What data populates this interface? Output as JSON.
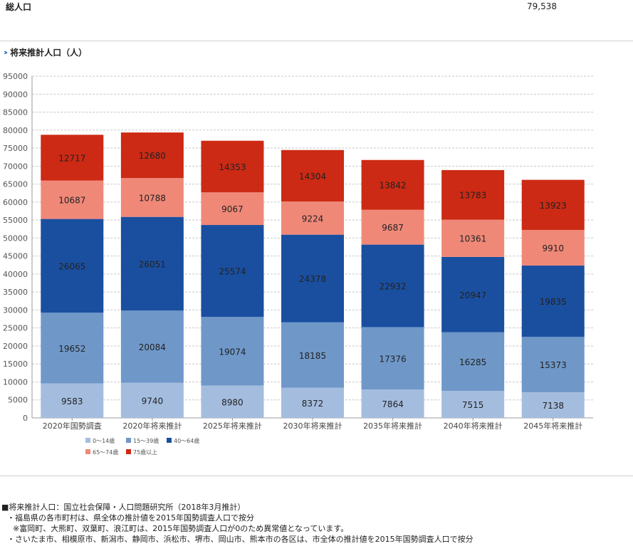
{
  "summary": {
    "label": "総人口",
    "value": "79,538"
  },
  "section_title": "将来推計人口（人）",
  "chart_data": {
    "type": "bar",
    "stacked": true,
    "title": "将来推計人口（人）",
    "categories": [
      "2020年国勢調査",
      "2020年将来推計",
      "2025年将来推計",
      "2030年将来推計",
      "2035年将来推計",
      "2040年将来推計",
      "2045年将来推計"
    ],
    "series": [
      {
        "name": "0～14歳",
        "color": "#a4bddf",
        "values": [
          9583,
          9740,
          8980,
          8372,
          7864,
          7515,
          7138
        ]
      },
      {
        "name": "15～39歳",
        "color": "#6f98c9",
        "values": [
          19652,
          20084,
          19074,
          18185,
          17376,
          16285,
          15373
        ]
      },
      {
        "name": "40～64歳",
        "color": "#1a4fa0",
        "values": [
          26065,
          26051,
          25574,
          24378,
          22932,
          20947,
          19835
        ]
      },
      {
        "name": "65～74歳",
        "color": "#f08878",
        "values": [
          10687,
          10788,
          9067,
          9224,
          9687,
          10361,
          9910
        ]
      },
      {
        "name": "75歳以上",
        "color": "#cc2a14",
        "values": [
          12717,
          12680,
          14353,
          14304,
          13842,
          13783,
          13923
        ]
      }
    ],
    "y_ticks": [
      "0",
      "5000",
      "10000",
      "15000",
      "20000",
      "25000",
      "30000",
      "35000",
      "40000",
      "45000",
      "50000",
      "55000",
      "60000",
      "65000",
      "70000",
      "75000",
      "80000",
      "85000",
      "90000",
      "95000"
    ],
    "ylim": [
      0,
      95000
    ],
    "xlabel": "",
    "ylabel": "",
    "grid": true,
    "legend_position": "bottom-left"
  },
  "notes": [
    "■将来推計人口：国立社会保障・人口問題研究所（2018年3月推計）",
    "・福島県の各市町村は、県全体の推計値を2015年国勢調査人口で按分",
    "※富岡町、大熊町、双葉町、浪江町は、2015年国勢調査人口が0のため異常値となっています。",
    "・さいたま市、相模原市、新潟市、静岡市、浜松市、堺市、岡山市、熊本市の各区は、市全体の推計値を2015年国勢調査人口で按分"
  ]
}
